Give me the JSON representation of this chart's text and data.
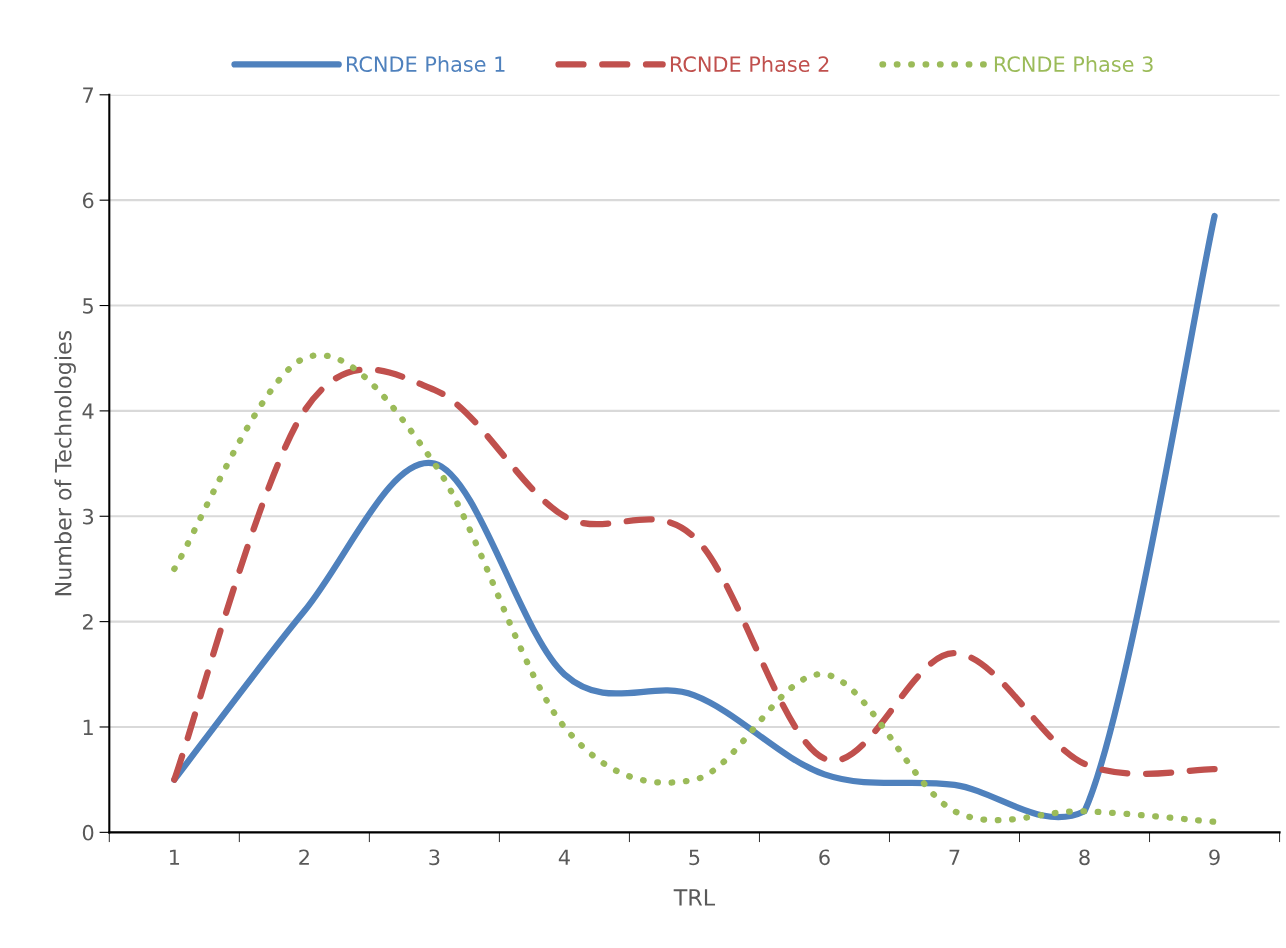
{
  "chart_data": {
    "type": "line",
    "xlabel": "TRL",
    "ylabel": "Number of Technologies",
    "categories": [
      "1",
      "2",
      "3",
      "4",
      "5",
      "6",
      "7",
      "8",
      "9"
    ],
    "series": [
      {
        "name": "RCNDE Phase 1",
        "color": "#4f81bd",
        "line_style": "solid",
        "values": [
          0.5,
          2.1,
          3.5,
          1.5,
          1.3,
          0.55,
          0.45,
          0.2,
          5.85
        ]
      },
      {
        "name": "RCNDE Phase 2",
        "color": "#c0504d",
        "line_style": "dashed",
        "values": [
          0.5,
          4.0,
          4.2,
          3.0,
          2.8,
          0.7,
          1.7,
          0.65,
          0.6
        ]
      },
      {
        "name": "RCNDE Phase 3",
        "color": "#9bbb59",
        "line_style": "dotted",
        "values": [
          2.5,
          4.5,
          3.5,
          1.0,
          0.5,
          1.5,
          0.2,
          0.2,
          0.1
        ]
      }
    ],
    "ylim": [
      0,
      7
    ],
    "yticks": [
      0,
      1,
      2,
      3,
      4,
      5,
      6,
      7
    ],
    "grid": "y",
    "legend": "top",
    "marker": "none"
  }
}
